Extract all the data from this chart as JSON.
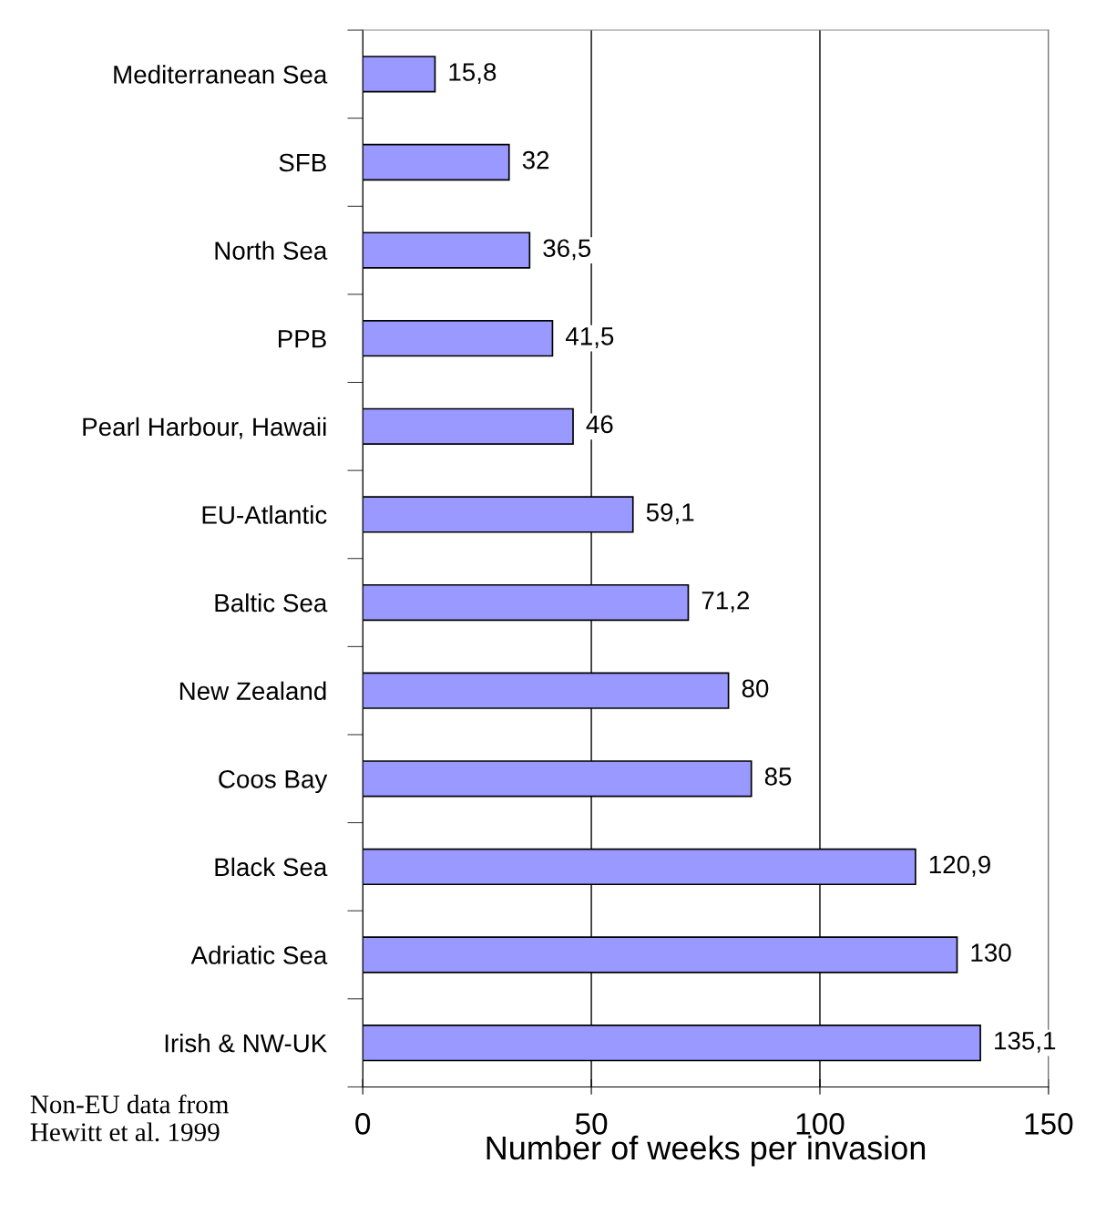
{
  "chart_data": {
    "type": "bar",
    "orientation": "horizontal",
    "categories": [
      "Mediterranean Sea",
      "SFB",
      "North Sea",
      "PPB",
      "Pearl Harbour, Hawaii",
      "EU-Atlantic",
      "Baltic Sea",
      "New Zealand",
      "Coos Bay",
      "Black Sea",
      "Adriatic Sea",
      "Irish & NW-UK"
    ],
    "values": [
      15.8,
      32,
      36.5,
      41.5,
      46,
      59.1,
      71.2,
      80,
      85,
      120.9,
      130,
      135.1
    ],
    "value_labels": [
      "15,8",
      "32",
      "36,5",
      "41,5",
      "46",
      "59,1",
      "71,2",
      "80",
      "85",
      "120,9",
      "130",
      "135,1"
    ],
    "color": "#9999ff",
    "xlabel": "Number of weeks per invasion",
    "xlim": [
      0,
      150
    ],
    "xticks": [
      0,
      50,
      100,
      150
    ],
    "grid": "x",
    "annotations": [
      "Non-EU data from\nHewitt et al. 1999"
    ]
  }
}
